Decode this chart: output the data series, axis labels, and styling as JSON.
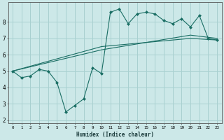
{
  "bg_color": "#cce8e8",
  "grid_color": "#a8d0d0",
  "line_color": "#1a6e64",
  "xlabel": "Humidex (Indice chaleur)",
  "xlim": [
    -0.5,
    23.5
  ],
  "ylim": [
    1.8,
    9.2
  ],
  "yticks": [
    2,
    3,
    4,
    5,
    6,
    7,
    8
  ],
  "xticks": [
    0,
    1,
    2,
    3,
    4,
    5,
    6,
    7,
    8,
    9,
    10,
    11,
    12,
    13,
    14,
    15,
    16,
    17,
    18,
    19,
    20,
    21,
    22,
    23
  ],
  "line1_x": [
    0,
    1,
    2,
    3,
    4,
    5,
    6,
    7,
    8,
    9,
    10,
    11,
    12,
    13,
    14,
    15,
    16,
    17,
    18,
    19,
    20,
    21,
    22,
    23
  ],
  "line1_y": [
    5.0,
    4.6,
    4.7,
    5.1,
    5.0,
    4.3,
    2.5,
    2.9,
    3.3,
    5.2,
    4.85,
    8.6,
    8.8,
    7.9,
    8.5,
    8.6,
    8.5,
    8.1,
    7.9,
    8.2,
    7.7,
    8.4,
    7.0,
    6.9
  ],
  "line2_x": [
    0,
    10,
    20,
    23
  ],
  "line2_y": [
    5.0,
    6.3,
    7.2,
    7.0
  ],
  "line3_x": [
    0,
    10,
    20,
    23
  ],
  "line3_y": [
    5.0,
    6.5,
    7.0,
    6.9
  ]
}
